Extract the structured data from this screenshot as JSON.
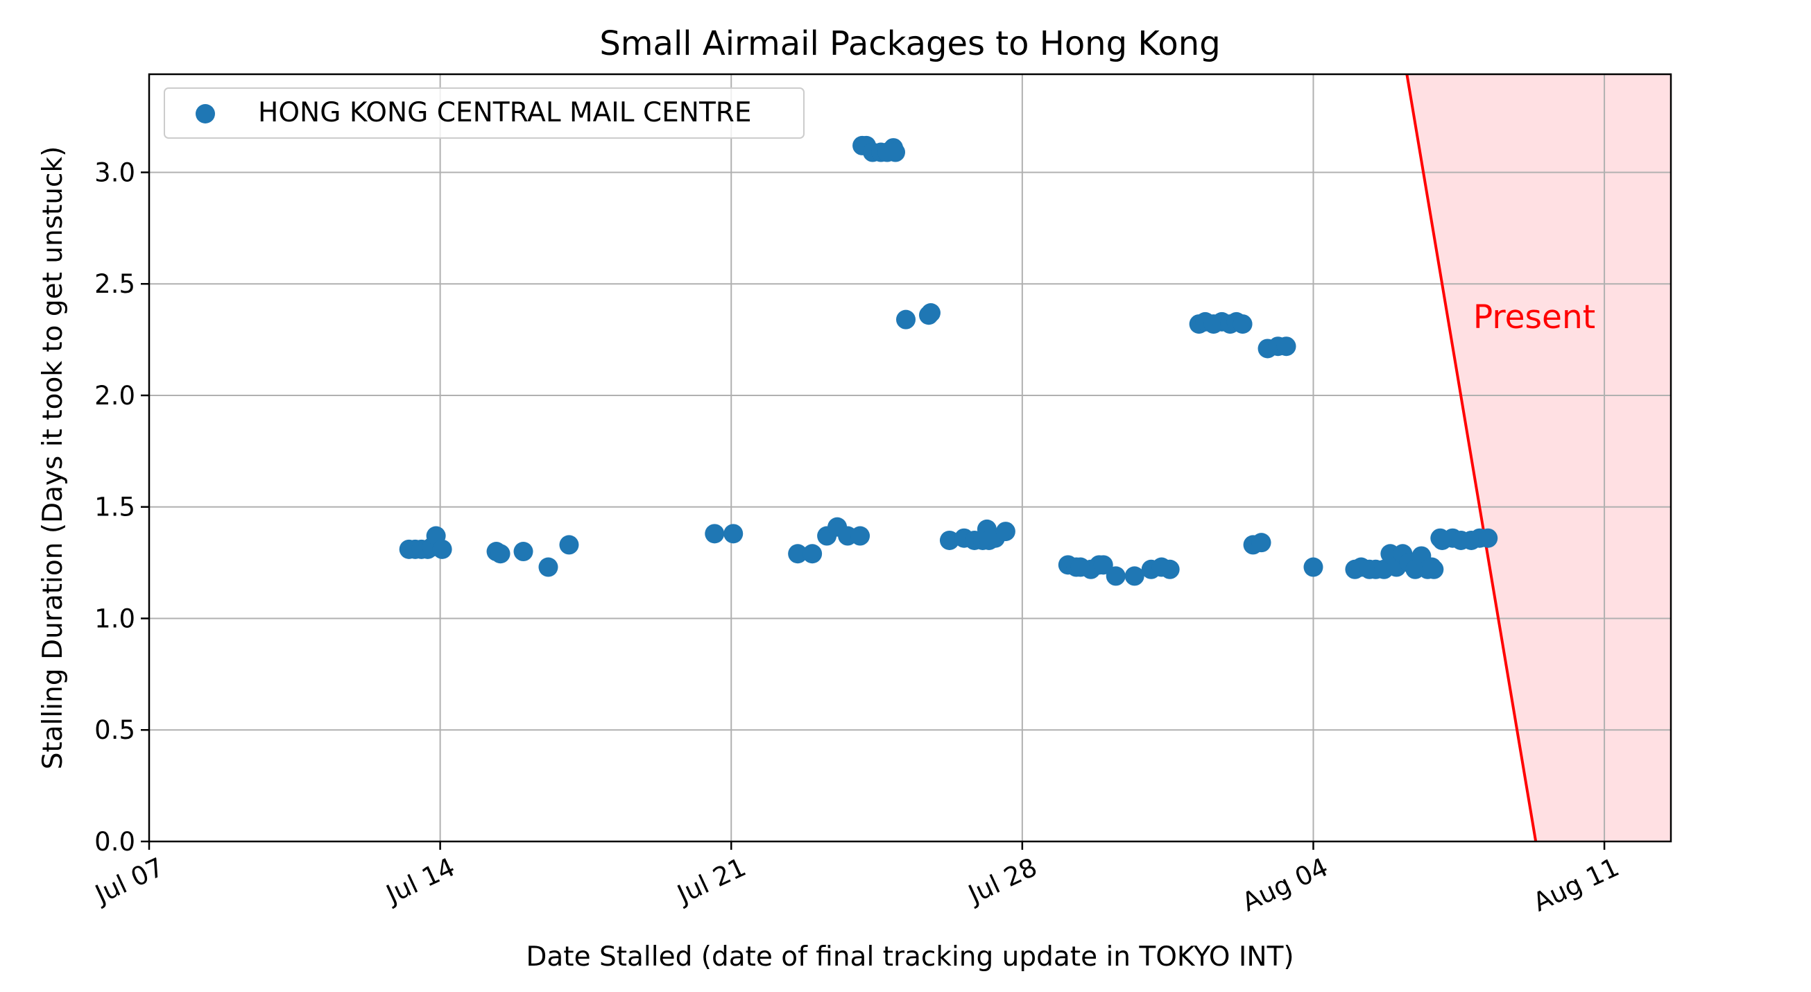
{
  "chart_data": {
    "type": "scatter",
    "title": "Small Airmail Packages to Hong Kong",
    "xlabel": "Date Stalled (date of final tracking update in TOKYO INT)",
    "ylabel": "Stalling Duration (Days it took to get unstuck)",
    "xlim": [
      0,
      36.6
    ],
    "ylim": [
      0,
      3.44
    ],
    "x_unit": "days since Jul 07",
    "x_ticks": [
      {
        "value": 0,
        "label": "Jul 07"
      },
      {
        "value": 7,
        "label": "Jul 14"
      },
      {
        "value": 14,
        "label": "Jul 21"
      },
      {
        "value": 21,
        "label": "Jul 28"
      },
      {
        "value": 28,
        "label": "Aug 04"
      },
      {
        "value": 35,
        "label": "Aug 11"
      }
    ],
    "y_ticks": [
      {
        "value": 0.0,
        "label": "0.0"
      },
      {
        "value": 0.5,
        "label": "0.5"
      },
      {
        "value": 1.0,
        "label": "1.0"
      },
      {
        "value": 1.5,
        "label": "1.5"
      },
      {
        "value": 2.0,
        "label": "2.0"
      },
      {
        "value": 2.5,
        "label": "2.5"
      },
      {
        "value": 3.0,
        "label": "3.0"
      }
    ],
    "grid": true,
    "legend_position": "top-left",
    "series": [
      {
        "name": "HONG KONG CENTRAL MAIL CENTRE",
        "color": "#1f77b4",
        "x": [
          6.25,
          6.4,
          6.55,
          6.7,
          6.8,
          6.9,
          7.05,
          8.35,
          8.45,
          9.0,
          9.6,
          10.1,
          13.6,
          14.05,
          15.6,
          15.95,
          16.3,
          16.55,
          16.8,
          17.1,
          17.25,
          17.15,
          17.4,
          17.6,
          17.75,
          17.9,
          17.95,
          18.2,
          18.8,
          18.75,
          19.25,
          19.6,
          19.85,
          20.05,
          20.15,
          20.2,
          20.35,
          20.6,
          22.1,
          22.3,
          22.4,
          22.65,
          22.85,
          22.95,
          23.25,
          23.7,
          24.1,
          24.35,
          24.55,
          25.25,
          25.4,
          25.6,
          25.8,
          26.0,
          26.15,
          26.3,
          26.55,
          26.75,
          26.9,
          27.15,
          27.35,
          28.0,
          29.0,
          29.15,
          29.35,
          29.5,
          29.7,
          29.85,
          30.0,
          30.15,
          30.3,
          30.45,
          30.6,
          30.75,
          30.9,
          30.85,
          31.05,
          31.1,
          31.35,
          31.55,
          31.8,
          32.0,
          32.2
        ],
        "y": [
          1.31,
          1.31,
          1.31,
          1.31,
          1.32,
          1.37,
          1.31,
          1.3,
          1.29,
          1.3,
          1.23,
          1.33,
          1.38,
          1.38,
          1.29,
          1.29,
          1.37,
          1.41,
          1.37,
          1.37,
          3.12,
          3.12,
          3.09,
          3.09,
          3.09,
          3.11,
          3.09,
          2.34,
          2.37,
          2.36,
          1.35,
          1.36,
          1.35,
          1.35,
          1.4,
          1.35,
          1.36,
          1.39,
          1.24,
          1.23,
          1.23,
          1.22,
          1.24,
          1.24,
          1.19,
          1.19,
          1.22,
          1.23,
          1.22,
          2.32,
          2.33,
          2.32,
          2.33,
          2.32,
          2.33,
          2.32,
          1.33,
          1.34,
          2.21,
          2.22,
          2.22,
          1.23,
          1.22,
          1.23,
          1.22,
          1.22,
          1.22,
          1.29,
          1.23,
          1.29,
          1.25,
          1.22,
          1.28,
          1.22,
          1.22,
          1.23,
          1.36,
          1.35,
          1.36,
          1.35,
          1.35,
          1.36,
          1.36
        ]
      }
    ],
    "present_line": {
      "label": "Present",
      "color": "#ff0000",
      "fill_color": "#ffe0e3",
      "top": {
        "x": 30.25,
        "y": 3.44
      },
      "bottom": {
        "x": 33.35,
        "y": 0.0
      }
    }
  }
}
